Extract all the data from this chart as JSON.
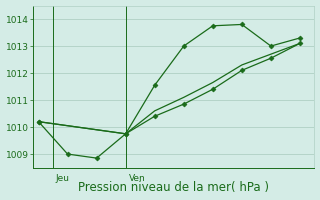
{
  "line1_x": [
    0,
    1,
    2,
    3,
    4,
    5,
    6,
    7,
    8,
    9
  ],
  "line1_y": [
    1010.2,
    1009.0,
    1008.85,
    1009.75,
    1011.55,
    1013.0,
    1013.75,
    1013.8,
    1013.0,
    1013.3
  ],
  "line2_x": [
    0,
    3,
    4,
    5,
    6,
    7,
    8,
    9
  ],
  "line2_y": [
    1010.2,
    1009.75,
    1010.4,
    1010.85,
    1011.4,
    1012.1,
    1012.55,
    1013.1
  ],
  "line3_x": [
    0,
    3,
    4,
    5,
    6,
    7,
    8,
    9
  ],
  "line3_y": [
    1010.2,
    1009.75,
    1010.6,
    1011.1,
    1011.65,
    1012.3,
    1012.7,
    1013.1
  ],
  "ylim": [
    1008.5,
    1014.5
  ],
  "yticks": [
    1009,
    1010,
    1011,
    1012,
    1013,
    1014
  ],
  "xlim": [
    -0.2,
    9.5
  ],
  "jeu_x": 0.5,
  "ven_x": 3.0,
  "line_color": "#1a6b1a",
  "bg_color": "#d4ece6",
  "grid_color": "#b0d0c4",
  "xlabel": "Pression niveau de la mer( hPa )",
  "jeu_label": "Jeu",
  "ven_label": "Ven",
  "tick_fontsize": 6.5,
  "label_fontsize": 8.5
}
